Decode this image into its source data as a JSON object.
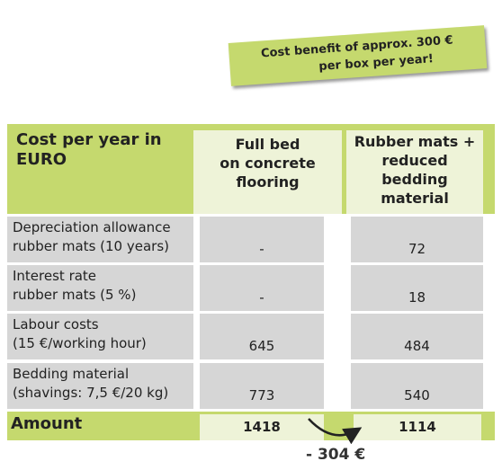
{
  "banner": {
    "lines": [
      "Cost benefit of approx. 300 €",
      "per box per year!"
    ]
  },
  "table": {
    "header": [
      [
        "Cost per year in",
        "EURO"
      ],
      [
        "Full bed",
        "on concrete",
        "flooring"
      ],
      [
        "Rubber mats +",
        "reduced",
        "bedding",
        "material"
      ]
    ],
    "rows": [
      {
        "label": [
          "Depreciation allowance",
          "rubber mats (10 years)"
        ],
        "values": [
          "-",
          72
        ]
      },
      {
        "label": [
          "Interest rate",
          "rubber mats (5 %)"
        ],
        "values": [
          "-",
          18
        ]
      },
      {
        "label": [
          "Labour costs",
          "(15 €/working hour)"
        ],
        "values": [
          645,
          484
        ]
      },
      {
        "label": [
          "Bedding material",
          "(shavings: 7,5 €/20 kg)"
        ],
        "values": [
          773,
          540
        ]
      }
    ],
    "total": {
      "label": "Amount",
      "values": [
        1418,
        1114
      ]
    }
  },
  "difference": "- 304 €"
}
